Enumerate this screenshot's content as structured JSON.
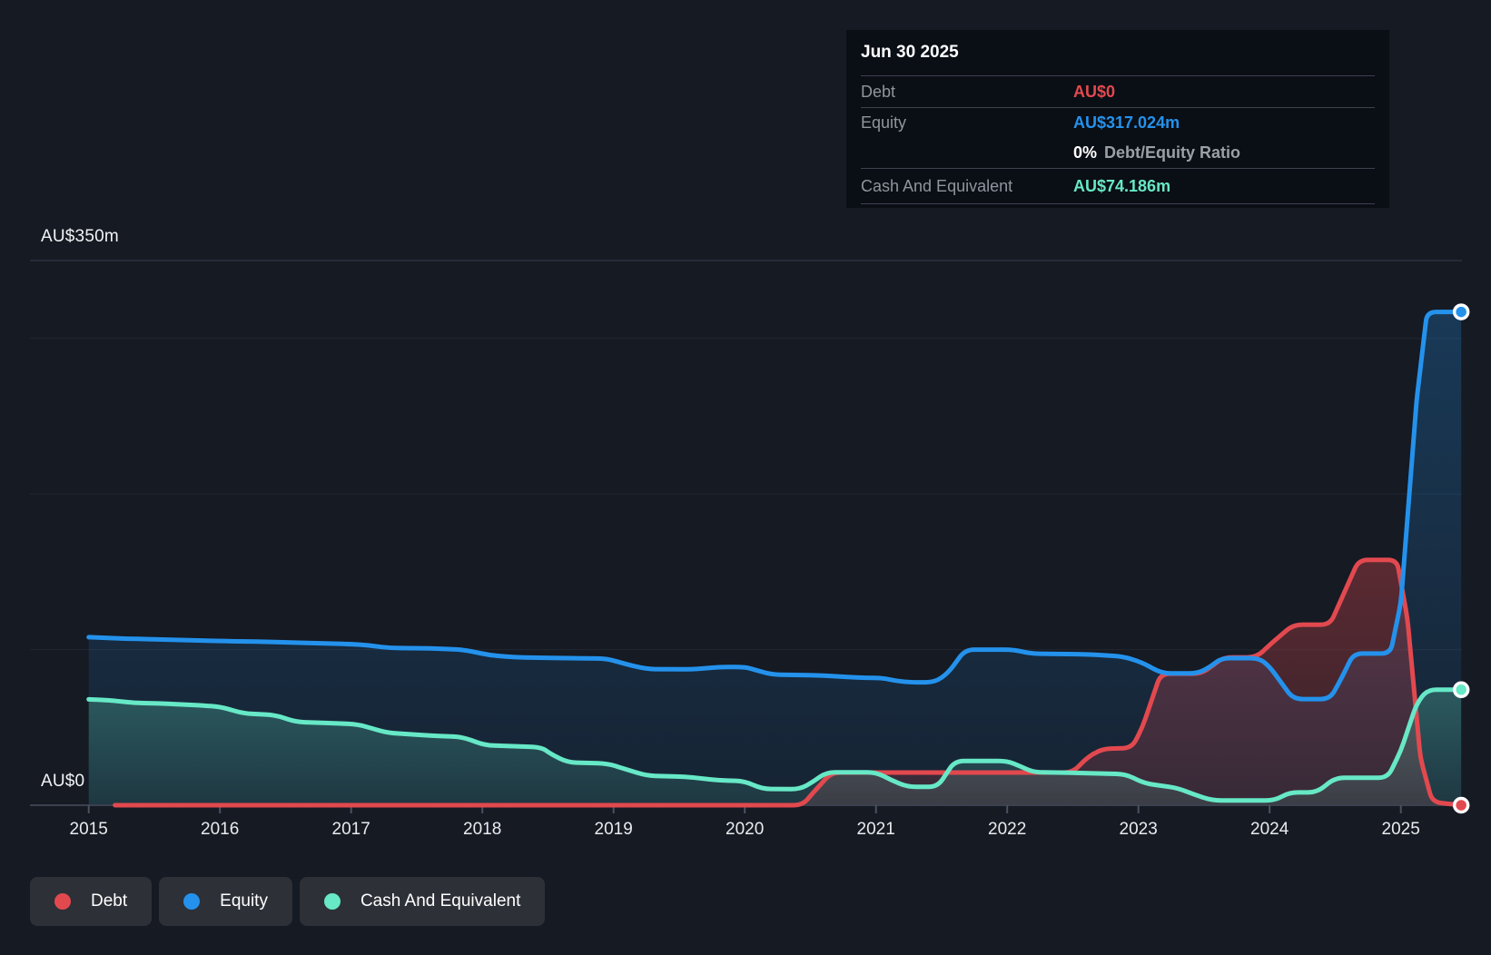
{
  "axis": {
    "y_top_label": "AU$350m",
    "y_zero_label": "AU$0",
    "x_labels": [
      "2015",
      "2016",
      "2017",
      "2018",
      "2019",
      "2020",
      "2021",
      "2022",
      "2023",
      "2024",
      "2025"
    ]
  },
  "tooltip": {
    "title": "Jun 30 2025",
    "debt_label": "Debt",
    "debt_value": "AU$0",
    "equity_label": "Equity",
    "equity_value": "AU$317.024m",
    "ratio_value": "0%",
    "ratio_label": "Debt/Equity Ratio",
    "cash_label": "Cash And Equivalent",
    "cash_value": "AU$74.186m"
  },
  "legend": [
    {
      "label": "Debt",
      "color": "#e2494f"
    },
    {
      "label": "Equity",
      "color": "#2492ec"
    },
    {
      "label": "Cash And Equivalent",
      "color": "#67e8c6"
    }
  ],
  "colors": {
    "background": "#151a23",
    "grid_major": "#2b313c",
    "grid_minor": "#212731",
    "axis_line": "#3a414e",
    "tick": "#4a5160",
    "debt": "#e2494f",
    "equity": "#2492ec",
    "cash": "#67e8c6"
  },
  "chart_data": {
    "type": "area",
    "title": "Debt to Equity history (AU$m)",
    "x_unit": "year",
    "x_range": [
      2015.0,
      2025.46
    ],
    "ylim": [
      0,
      350
    ],
    "gridline_values": [
      350,
      300,
      200,
      100,
      0
    ],
    "legend_position": "bottom-left",
    "series": [
      {
        "name": "Equity",
        "color": "#2492ec",
        "last_value_label": "AU$317.024m",
        "points": [
          [
            2015.0,
            108
          ],
          [
            2015.3,
            107
          ],
          [
            2015.7,
            106.2
          ],
          [
            2016.0,
            105.5
          ],
          [
            2016.35,
            105
          ],
          [
            2016.7,
            104.2
          ],
          [
            2017.0,
            103.5
          ],
          [
            2017.1,
            103
          ],
          [
            2017.3,
            101
          ],
          [
            2017.6,
            100.8
          ],
          [
            2017.85,
            100
          ],
          [
            2018.05,
            96.5
          ],
          [
            2018.25,
            95
          ],
          [
            2018.6,
            94.6
          ],
          [
            2018.95,
            94.2
          ],
          [
            2019.08,
            91
          ],
          [
            2019.25,
            87.5
          ],
          [
            2019.6,
            87.3
          ],
          [
            2019.8,
            88.8
          ],
          [
            2020.0,
            88.8
          ],
          [
            2020.08,
            87
          ],
          [
            2020.2,
            84
          ],
          [
            2020.55,
            83.5
          ],
          [
            2020.85,
            82
          ],
          [
            2021.05,
            81.7
          ],
          [
            2021.15,
            80
          ],
          [
            2021.25,
            79
          ],
          [
            2021.45,
            79
          ],
          [
            2021.55,
            85
          ],
          [
            2021.68,
            100
          ],
          [
            2022.05,
            100
          ],
          [
            2022.18,
            97.4
          ],
          [
            2022.6,
            97
          ],
          [
            2022.88,
            95.6
          ],
          [
            2023.02,
            92
          ],
          [
            2023.18,
            84.7
          ],
          [
            2023.45,
            84.7
          ],
          [
            2023.55,
            89
          ],
          [
            2023.63,
            94.5
          ],
          [
            2023.92,
            94.5
          ],
          [
            2024.0,
            89
          ],
          [
            2024.18,
            68.2
          ],
          [
            2024.46,
            68.2
          ],
          [
            2024.55,
            82
          ],
          [
            2024.64,
            97.5
          ],
          [
            2024.92,
            97.5
          ],
          [
            2025.0,
            130
          ],
          [
            2025.12,
            260
          ],
          [
            2025.2,
            317
          ],
          [
            2025.46,
            317
          ]
        ]
      },
      {
        "name": "Debt",
        "color": "#e2494f",
        "last_value_label": "AU$0",
        "points": [
          [
            2015.2,
            0
          ],
          [
            2020.44,
            0
          ],
          [
            2020.52,
            8
          ],
          [
            2020.66,
            21
          ],
          [
            2022.5,
            21
          ],
          [
            2022.6,
            30
          ],
          [
            2022.72,
            36.2
          ],
          [
            2022.95,
            36.8
          ],
          [
            2023.03,
            50
          ],
          [
            2023.17,
            84.5
          ],
          [
            2023.48,
            84.5
          ],
          [
            2023.57,
            90
          ],
          [
            2023.65,
            95
          ],
          [
            2023.9,
            95
          ],
          [
            2024.0,
            103
          ],
          [
            2024.18,
            116
          ],
          [
            2024.46,
            116
          ],
          [
            2024.56,
            135
          ],
          [
            2024.68,
            157.7
          ],
          [
            2024.97,
            157.7
          ],
          [
            2025.05,
            120
          ],
          [
            2025.15,
            30
          ],
          [
            2025.24,
            2
          ],
          [
            2025.46,
            0
          ]
        ]
      },
      {
        "name": "Cash And Equivalent",
        "color": "#67e8c6",
        "last_value_label": "AU$74.186m",
        "points": [
          [
            2015.0,
            68
          ],
          [
            2015.15,
            67.5
          ],
          [
            2015.35,
            65.8
          ],
          [
            2015.6,
            65.2
          ],
          [
            2015.85,
            64.2
          ],
          [
            2016.0,
            63.3
          ],
          [
            2016.18,
            59
          ],
          [
            2016.42,
            58
          ],
          [
            2016.58,
            53.5
          ],
          [
            2016.85,
            52.8
          ],
          [
            2017.05,
            52
          ],
          [
            2017.28,
            46.5
          ],
          [
            2017.6,
            44.8
          ],
          [
            2017.85,
            43.8
          ],
          [
            2018.02,
            38.5
          ],
          [
            2018.45,
            37.3
          ],
          [
            2018.52,
            33
          ],
          [
            2018.65,
            27.5
          ],
          [
            2018.95,
            26.8
          ],
          [
            2019.1,
            23
          ],
          [
            2019.25,
            19
          ],
          [
            2019.55,
            18.3
          ],
          [
            2019.8,
            16
          ],
          [
            2020.0,
            15.5
          ],
          [
            2020.13,
            10.5
          ],
          [
            2020.42,
            10.3
          ],
          [
            2020.52,
            15
          ],
          [
            2020.62,
            21.2
          ],
          [
            2021.0,
            21.2
          ],
          [
            2021.12,
            16
          ],
          [
            2021.24,
            11.8
          ],
          [
            2021.47,
            11.8
          ],
          [
            2021.6,
            28.4
          ],
          [
            2022.0,
            28.4
          ],
          [
            2022.1,
            25
          ],
          [
            2022.2,
            21.2
          ],
          [
            2022.55,
            20.7
          ],
          [
            2022.9,
            20
          ],
          [
            2023.05,
            14
          ],
          [
            2023.3,
            11
          ],
          [
            2023.42,
            7
          ],
          [
            2023.56,
            3.1
          ],
          [
            2024.04,
            3.1
          ],
          [
            2024.15,
            8.2
          ],
          [
            2024.36,
            8.2
          ],
          [
            2024.5,
            17.7
          ],
          [
            2024.9,
            17.7
          ],
          [
            2025.0,
            35
          ],
          [
            2025.12,
            65
          ],
          [
            2025.2,
            74.2
          ],
          [
            2025.46,
            74.2
          ]
        ]
      }
    ]
  }
}
